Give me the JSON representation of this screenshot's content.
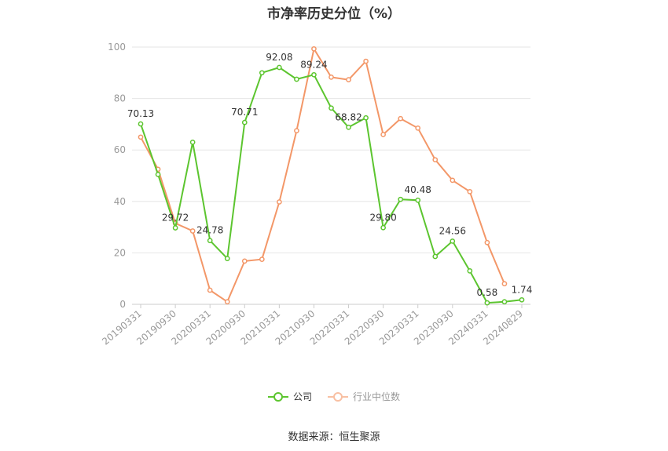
{
  "chart_data": {
    "type": "line",
    "title": "市净率历史分位（%）",
    "ylim": [
      0,
      100
    ],
    "yticks": [
      0,
      20,
      40,
      60,
      80,
      100
    ],
    "x": [
      "20190331",
      "20190630",
      "20190930",
      "20191231",
      "20200331",
      "20200630",
      "20200930",
      "20201231",
      "20210331",
      "20210630",
      "20210930",
      "20211231",
      "20220331",
      "20220630",
      "20220930",
      "20221231",
      "20230331",
      "20230630",
      "20230930",
      "20231231",
      "20240331",
      "20240630",
      "20240829"
    ],
    "xtick_labels": [
      "20190331",
      "20190930",
      "20200331",
      "20200930",
      "20210331",
      "20210930",
      "20220331",
      "20220930",
      "20230331",
      "20230930",
      "20240331",
      "20240829"
    ],
    "grid": true,
    "legend_position": "bottom",
    "series": [
      {
        "name": "公司",
        "color": "#5cc52f",
        "values": [
          70.13,
          50.5,
          29.72,
          63.0,
          24.78,
          17.8,
          70.71,
          90.0,
          92.08,
          87.5,
          89.24,
          76.3,
          68.82,
          72.5,
          29.8,
          40.8,
          40.48,
          18.6,
          24.56,
          13.0,
          0.58,
          1.0,
          1.74
        ],
        "labels": {
          "0": "70.13",
          "2": "29.72",
          "4": "24.78",
          "6": "70.71",
          "8": "92.08",
          "10": "89.24",
          "12": "68.82",
          "14": "29.80",
          "16": "40.48",
          "18": "24.56",
          "20": "0.58",
          "22": "1.74"
        }
      },
      {
        "name": "行业中位数",
        "color": "#f39768",
        "values": [
          65.0,
          52.5,
          31.5,
          28.5,
          5.5,
          1.0,
          16.8,
          17.5,
          39.8,
          67.5,
          99.3,
          88.3,
          87.3,
          94.5,
          66.0,
          72.2,
          68.5,
          56.2,
          48.2,
          43.8,
          24.0,
          8.0,
          null
        ]
      }
    ]
  },
  "source": "数据来源：恒生聚源"
}
